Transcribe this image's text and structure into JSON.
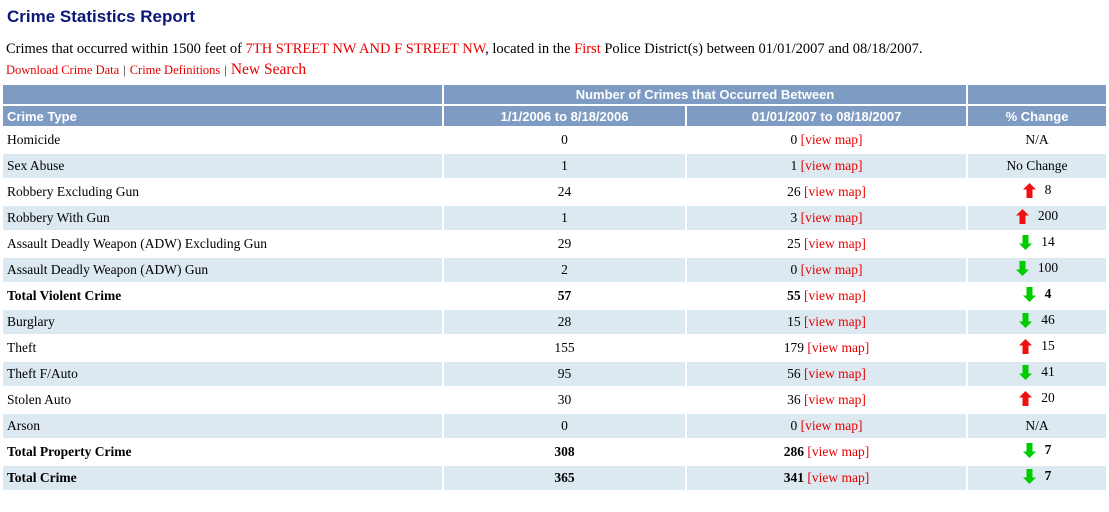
{
  "colors": {
    "header_bg": "#7d9bc3",
    "alt_row_bg": "#dce9f1",
    "title_navy": "#0b1778",
    "red": "#e60000",
    "arrow_up_red": "#ee1111",
    "arrow_down_green": "#00cc00"
  },
  "header": {
    "title": "Crime Statistics Report"
  },
  "intro": {
    "before_location": "Crimes that occurred within 1500 feet of ",
    "location": "7TH STREET NW AND F STREET NW",
    "after_location": ", located in the ",
    "district": "First",
    "after_district": " Police District(s) between 01/01/2007 and 08/18/2007."
  },
  "links": {
    "download": "Download Crime Data",
    "separator": "|",
    "definitions": "Crime Definitions",
    "new_search": "New Search"
  },
  "table": {
    "group_header": "Number of Crimes that Occurred Between",
    "columns": [
      "Crime Type",
      "1/1/2006 to 8/18/2006",
      "01/01/2007 to 08/18/2007",
      "% Change"
    ],
    "view_map_label": "[view map]",
    "rows": [
      {
        "type": "Homicide",
        "count_2006": "0",
        "count_2007": "0",
        "change": {
          "dir": "none",
          "label": "N/A"
        },
        "bold": false
      },
      {
        "type": "Sex Abuse",
        "count_2006": "1",
        "count_2007": "1",
        "change": {
          "dir": "none",
          "label": "No Change"
        },
        "bold": false
      },
      {
        "type": "Robbery Excluding Gun",
        "count_2006": "24",
        "count_2007": "26",
        "change": {
          "dir": "up",
          "label": "8"
        },
        "bold": false
      },
      {
        "type": "Robbery With Gun",
        "count_2006": "1",
        "count_2007": "3",
        "change": {
          "dir": "up",
          "label": "200"
        },
        "bold": false
      },
      {
        "type": "Assault Deadly Weapon (ADW) Excluding Gun",
        "count_2006": "29",
        "count_2007": "25",
        "change": {
          "dir": "down",
          "label": "14"
        },
        "bold": false
      },
      {
        "type": "Assault Deadly Weapon (ADW) Gun",
        "count_2006": "2",
        "count_2007": "0",
        "change": {
          "dir": "down",
          "label": "100"
        },
        "bold": false
      },
      {
        "type": "Total Violent Crime",
        "count_2006": "57",
        "count_2007": "55",
        "change": {
          "dir": "down",
          "label": "4"
        },
        "bold": true
      },
      {
        "type": "Burglary",
        "count_2006": "28",
        "count_2007": "15",
        "change": {
          "dir": "down",
          "label": "46"
        },
        "bold": false
      },
      {
        "type": "Theft",
        "count_2006": "155",
        "count_2007": "179",
        "change": {
          "dir": "up",
          "label": "15"
        },
        "bold": false
      },
      {
        "type": "Theft F/Auto",
        "count_2006": "95",
        "count_2007": "56",
        "change": {
          "dir": "down",
          "label": "41"
        },
        "bold": false
      },
      {
        "type": "Stolen Auto",
        "count_2006": "30",
        "count_2007": "36",
        "change": {
          "dir": "up",
          "label": "20"
        },
        "bold": false
      },
      {
        "type": "Arson",
        "count_2006": "0",
        "count_2007": "0",
        "change": {
          "dir": "none",
          "label": "N/A"
        },
        "bold": false
      },
      {
        "type": "Total Property Crime",
        "count_2006": "308",
        "count_2007": "286",
        "change": {
          "dir": "down",
          "label": "7"
        },
        "bold": true
      },
      {
        "type": "Total Crime",
        "count_2006": "365",
        "count_2007": "341",
        "change": {
          "dir": "down",
          "label": "7"
        },
        "bold": true
      }
    ]
  }
}
